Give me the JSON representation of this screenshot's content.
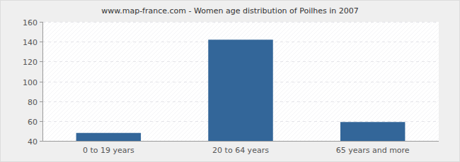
{
  "chart_data": {
    "type": "bar",
    "title": "www.map-france.com - Women age distribution of Poilhes in 2007",
    "categories": [
      "0 to 19 years",
      "20 to 64 years",
      "65 years and more"
    ],
    "values": [
      48,
      142,
      59
    ],
    "color": "#336699",
    "ylim": [
      40,
      160
    ],
    "yticks": [
      40,
      60,
      80,
      100,
      120,
      140,
      160
    ],
    "grid": true
  }
}
